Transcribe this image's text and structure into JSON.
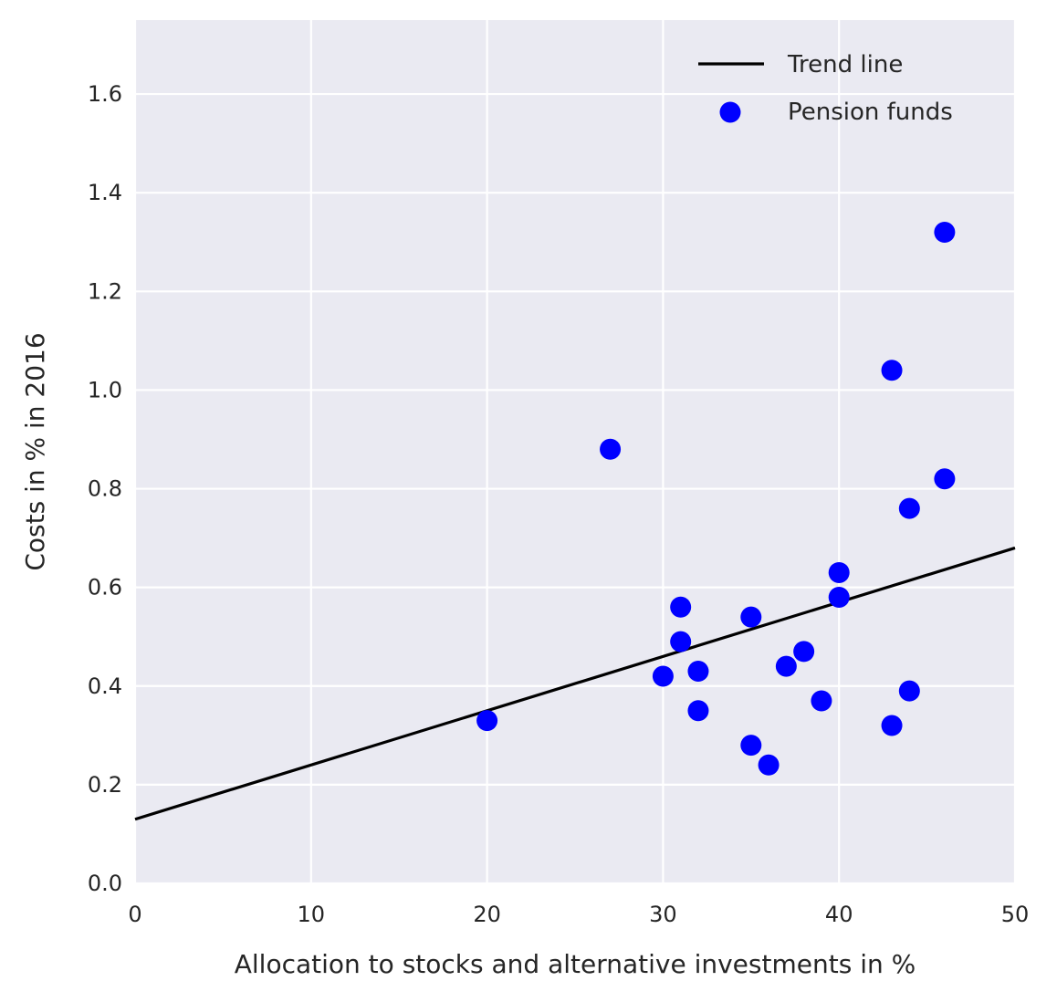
{
  "chart_data": {
    "type": "scatter",
    "xlabel": "Allocation to stocks and alternative investments in %",
    "ylabel": "Costs in % in 2016",
    "xlim": [
      0,
      50
    ],
    "ylim": [
      0,
      1.75
    ],
    "xticks": [
      0,
      10,
      20,
      30,
      40,
      50
    ],
    "yticks": [
      0.0,
      0.2,
      0.4,
      0.6,
      0.8,
      1.0,
      1.2,
      1.4,
      1.6
    ],
    "grid": true,
    "legend_position": "top-right",
    "colors": {
      "background": "#eaeaf2",
      "grid": "#ffffff",
      "points": "#0000ff",
      "trend": "#000000"
    },
    "trend_line": {
      "name": "Trend line",
      "x": [
        0,
        50
      ],
      "y": [
        0.13,
        0.68
      ]
    },
    "series": [
      {
        "name": "Pension funds",
        "points": [
          {
            "x": 20,
            "y": 0.33
          },
          {
            "x": 27,
            "y": 0.88
          },
          {
            "x": 30,
            "y": 0.42
          },
          {
            "x": 31,
            "y": 0.56
          },
          {
            "x": 31,
            "y": 0.49
          },
          {
            "x": 32,
            "y": 0.43
          },
          {
            "x": 32,
            "y": 0.35
          },
          {
            "x": 35,
            "y": 0.54
          },
          {
            "x": 35,
            "y": 0.28
          },
          {
            "x": 36,
            "y": 0.24
          },
          {
            "x": 37,
            "y": 0.44
          },
          {
            "x": 38,
            "y": 0.47
          },
          {
            "x": 39,
            "y": 0.37
          },
          {
            "x": 40,
            "y": 0.63
          },
          {
            "x": 40,
            "y": 0.58
          },
          {
            "x": 43,
            "y": 1.04
          },
          {
            "x": 43,
            "y": 0.32
          },
          {
            "x": 44,
            "y": 0.76
          },
          {
            "x": 44,
            "y": 0.39
          },
          {
            "x": 46,
            "y": 1.32
          },
          {
            "x": 46,
            "y": 0.82
          }
        ]
      }
    ]
  }
}
